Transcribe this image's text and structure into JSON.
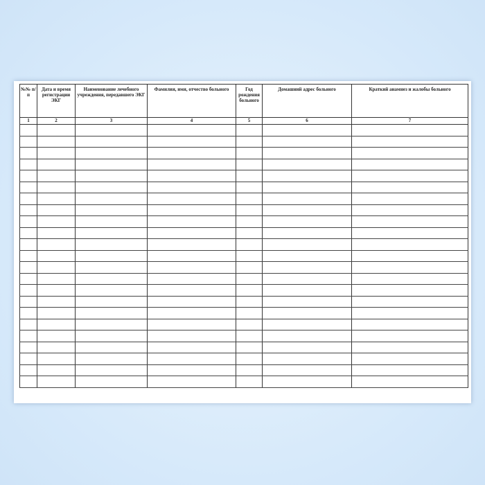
{
  "document": {
    "columns": [
      {
        "header": "№№ п/п",
        "number": "1"
      },
      {
        "header": "Дата и время регистрации ЭКГ",
        "number": "2"
      },
      {
        "header": "Наименование лечебного учреждения, передавшего ЭКГ",
        "number": "3"
      },
      {
        "header": "Фамилия, имя, отчество больного",
        "number": "4"
      },
      {
        "header": "Год рождения больного",
        "number": "5"
      },
      {
        "header": "Домашний адрес больного",
        "number": "6"
      },
      {
        "header": "Краткий анамнез и жалобы больного",
        "number": "7"
      }
    ]
  }
}
